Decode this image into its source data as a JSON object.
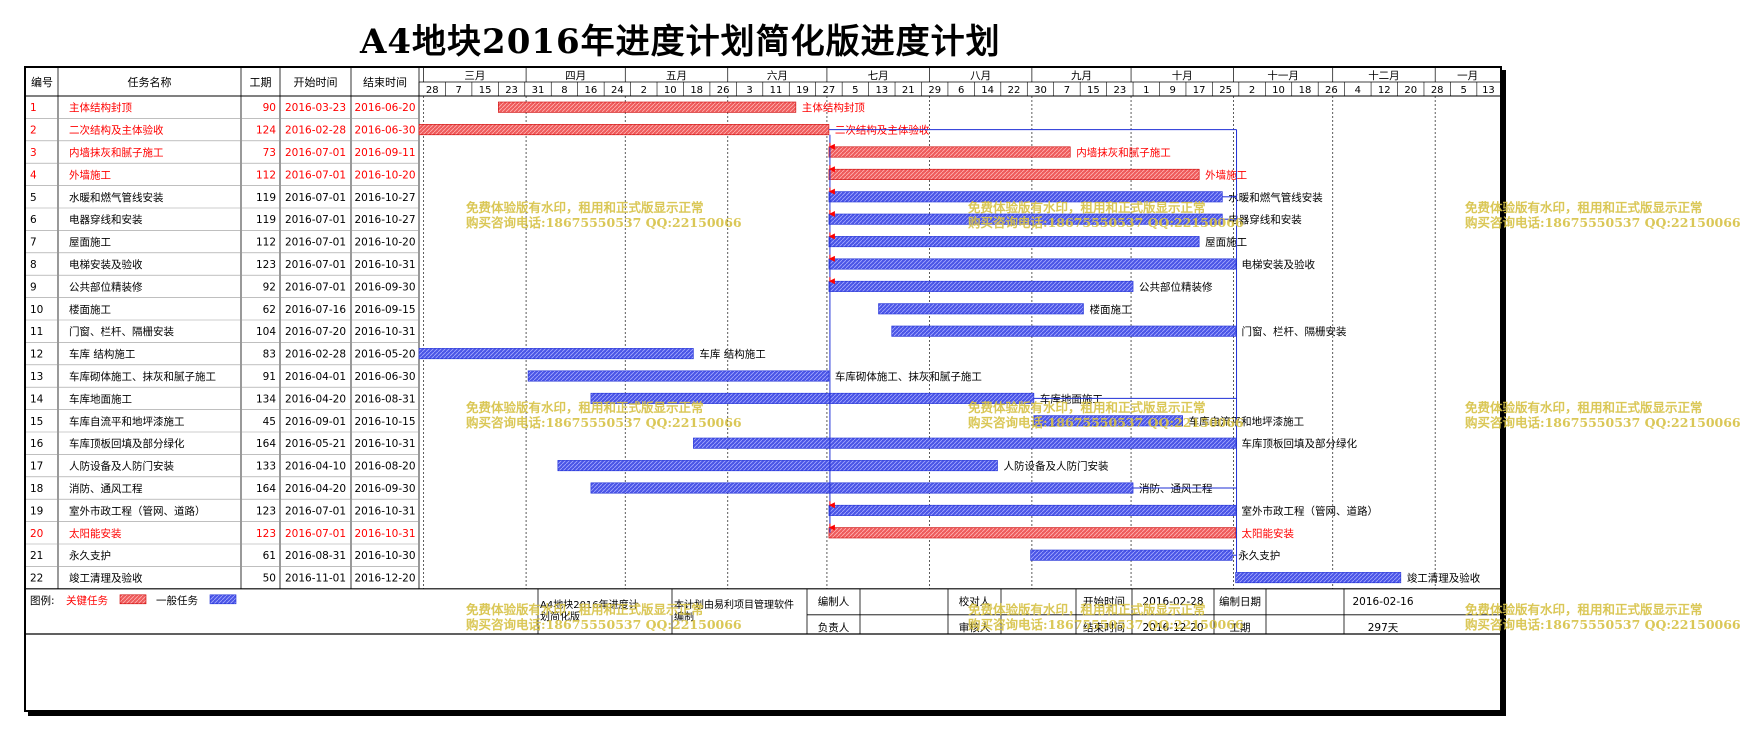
{
  "title": "A4地块2016年进度计划简化版进度计划",
  "headers": {
    "id": "编号",
    "name": "任务名称",
    "duration": "工期",
    "start": "开始时间",
    "end": "结束时间"
  },
  "colors": {
    "critical": "#ff0000",
    "critical_bar": "#ee5b5b",
    "normal_bar": "#4a55e6",
    "link": "#1f2fd6",
    "grid": "#999999"
  },
  "timeline": {
    "months": [
      "三月",
      "四月",
      "五月",
      "六月",
      "七月",
      "八月",
      "九月",
      "十月",
      "十一月",
      "十二月",
      "一月"
    ],
    "days": [
      "28",
      "7",
      "15",
      "23",
      "31",
      "8",
      "16",
      "24",
      "2",
      "10",
      "18",
      "26",
      "3",
      "11",
      "19",
      "27",
      "5",
      "13",
      "21",
      "29",
      "6",
      "14",
      "22",
      "30",
      "7",
      "15",
      "23",
      "1",
      "9",
      "17",
      "25",
      "2",
      "10",
      "18",
      "26",
      "4",
      "12",
      "20",
      "28",
      "5",
      "13"
    ]
  },
  "chart_data": {
    "type": "gantt",
    "x_range": [
      "2016-02-28",
      "2017-01-20"
    ],
    "tasks": [
      {
        "id": "1",
        "name": "主体结构封顶",
        "duration": "90",
        "start": "2016-03-23",
        "end": "2016-06-20",
        "critical": true,
        "label": "主体结构封顶"
      },
      {
        "id": "2",
        "name": "二次结构及主体验收",
        "duration": "124",
        "start": "2016-02-28",
        "end": "2016-06-30",
        "critical": true,
        "label": "二次结构及主体验收"
      },
      {
        "id": "3",
        "name": "内墙抹灰和腻子施工",
        "duration": "73",
        "start": "2016-07-01",
        "end": "2016-09-11",
        "critical": true,
        "label": "内墙抹灰和腻子施工"
      },
      {
        "id": "4",
        "name": "外墙施工",
        "duration": "112",
        "start": "2016-07-01",
        "end": "2016-10-20",
        "critical": true,
        "label": "外墙施工"
      },
      {
        "id": "5",
        "name": "水暖和燃气管线安装",
        "duration": "119",
        "start": "2016-07-01",
        "end": "2016-10-27",
        "critical": false,
        "label": "水暖和燃气管线安装"
      },
      {
        "id": "6",
        "name": "电器穿线和安装",
        "duration": "119",
        "start": "2016-07-01",
        "end": "2016-10-27",
        "critical": false,
        "label": "电器穿线和安装"
      },
      {
        "id": "7",
        "name": "屋面施工",
        "duration": "112",
        "start": "2016-07-01",
        "end": "2016-10-20",
        "critical": false,
        "label": "屋面施工"
      },
      {
        "id": "8",
        "name": "电梯安装及验收",
        "duration": "123",
        "start": "2016-07-01",
        "end": "2016-10-31",
        "critical": false,
        "label": "电梯安装及验收"
      },
      {
        "id": "9",
        "name": "公共部位精装修",
        "duration": "92",
        "start": "2016-07-01",
        "end": "2016-09-30",
        "critical": false,
        "label": "公共部位精装修"
      },
      {
        "id": "10",
        "name": "楼面施工",
        "duration": "62",
        "start": "2016-07-16",
        "end": "2016-09-15",
        "critical": false,
        "label": "楼面施工"
      },
      {
        "id": "11",
        "name": "门窗、栏杆、隔栅安装",
        "duration": "104",
        "start": "2016-07-20",
        "end": "2016-10-31",
        "critical": false,
        "label": "门窗、栏杆、隔栅安装"
      },
      {
        "id": "12",
        "name": "车库 结构施工",
        "duration": "83",
        "start": "2016-02-28",
        "end": "2016-05-20",
        "critical": false,
        "label": "车库 结构施工"
      },
      {
        "id": "13",
        "name": "车库砌体施工、抹灰和腻子施工",
        "duration": "91",
        "start": "2016-04-01",
        "end": "2016-06-30",
        "critical": false,
        "label": "车库砌体施工、抹灰和腻子施工"
      },
      {
        "id": "14",
        "name": "车库地面施工",
        "duration": "134",
        "start": "2016-04-20",
        "end": "2016-08-31",
        "critical": false,
        "label": "车库地面施工"
      },
      {
        "id": "15",
        "name": "车库自流平和地坪漆施工",
        "duration": "45",
        "start": "2016-09-01",
        "end": "2016-10-15",
        "critical": false,
        "label": "车库自流平和地坪漆施工"
      },
      {
        "id": "16",
        "name": "车库顶板回填及部分绿化",
        "duration": "164",
        "start": "2016-05-21",
        "end": "2016-10-31",
        "critical": false,
        "label": "车库顶板回填及部分绿化"
      },
      {
        "id": "17",
        "name": "人防设备及人防门安装",
        "duration": "133",
        "start": "2016-04-10",
        "end": "2016-08-20",
        "critical": false,
        "label": "人防设备及人防门安装"
      },
      {
        "id": "18",
        "name": "消防、通风工程",
        "duration": "164",
        "start": "2016-04-20",
        "end": "2016-09-30",
        "critical": false,
        "label": "消防、通风工程"
      },
      {
        "id": "19",
        "name": "室外市政工程（管网、道路）",
        "duration": "123",
        "start": "2016-07-01",
        "end": "2016-10-31",
        "critical": false,
        "label": "室外市政工程（管网、道路）"
      },
      {
        "id": "20",
        "name": "太阳能安装",
        "duration": "123",
        "start": "2016-07-01",
        "end": "2016-10-31",
        "critical": true,
        "label": "太阳能安装"
      },
      {
        "id": "21",
        "name": "永久支护",
        "duration": "61",
        "start": "2016-08-31",
        "end": "2016-10-30",
        "critical": false,
        "label": "永久支护"
      },
      {
        "id": "22",
        "name": "竣工清理及验收",
        "duration": "50",
        "start": "2016-11-01",
        "end": "2016-12-20",
        "critical": false,
        "label": "竣工清理及验收"
      }
    ]
  },
  "legend": {
    "label": "图例:",
    "critical": "关键任务",
    "normal": "一般任务"
  },
  "footer": {
    "project_name": "A4地块2016年进度计划简化版",
    "software_note": "本计划由易利项目管理软件编制",
    "compiler_label": "编制人",
    "compiler": "",
    "checker_label": "校对人",
    "checker": "",
    "owner_label": "负责人",
    "owner": "",
    "reviewer_label": "审核人",
    "reviewer": "",
    "start_label": "开始时间",
    "start": "2016-02-28",
    "end_label": "结束时间",
    "end": "2016-12-20",
    "date_label": "编制日期",
    "date": "2016-02-16",
    "duration_label": "工期",
    "duration": "297天"
  },
  "watermark": {
    "line1": "免费体验版有水印，租用和正式版显示正常",
    "line2": "购买咨询电话:18675550537 QQ:22150066"
  }
}
